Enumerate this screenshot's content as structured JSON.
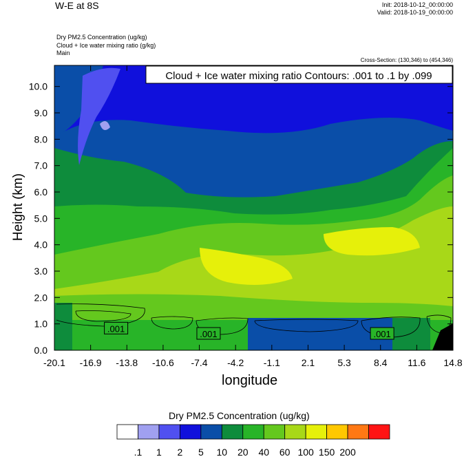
{
  "header": {
    "title": "W-E at 8S",
    "init": "Init: 2018-10-12_00:00:00",
    "valid": "Valid: 2018-10-19_00:00:00",
    "field1": "Dry PM2.5 Concentration   (ug/kg)",
    "field2": "Cloud + Ice water mixing ratio   (g/kg)",
    "field3": "Main",
    "cross_section": "Cross-Section: (130,346) to (454,346)",
    "contour_note": "Cloud + Ice water mixing ratio Contours: .001 to .1 by .099"
  },
  "chart_data": {
    "type": "heatmap",
    "xlabel": "longitude",
    "ylabel": "Height (km)",
    "xlim": [
      -20.1,
      14.8
    ],
    "ylim": [
      0,
      10.8
    ],
    "x_ticks": [
      "-20.1",
      "-16.9",
      "-13.8",
      "-10.6",
      "-7.4",
      "-4.2",
      "-1.1",
      "2.1",
      "5.3",
      "8.4",
      "11.6",
      "14.8"
    ],
    "y_ticks": [
      0.0,
      1.0,
      2.0,
      3.0,
      4.0,
      5.0,
      6.0,
      7.0,
      8.0,
      9.0,
      10.0
    ],
    "y_tick_labels": [
      "0.0",
      "1.0",
      "2.0",
      "3.0",
      "4.0",
      "5.0",
      "6.0",
      "7.0",
      "8.0",
      "9.0",
      "10.0"
    ],
    "contour_labels": [
      {
        "text": ".001",
        "x": -14.7,
        "y": 0.8
      },
      {
        "text": ".001",
        "x": -6.6,
        "y": 0.6
      },
      {
        "text": ".001",
        "x": 8.6,
        "y": 0.6
      }
    ],
    "colorbar": {
      "title": "Dry PM2.5 Concentration  (ug/kg)",
      "labels": [
        ".1",
        "1",
        "2",
        "5",
        "10",
        "20",
        "40",
        "60",
        "100",
        "150",
        "200"
      ],
      "colors": [
        "#ffffff",
        "#a0a0f0",
        "#5050f0",
        "#1010dc",
        "#0a4ea8",
        "#0e8c3c",
        "#28b428",
        "#64c81e",
        "#a8d818",
        "#e6f00a",
        "#ffc800",
        "#ff7814",
        "#ff1414"
      ]
    }
  }
}
